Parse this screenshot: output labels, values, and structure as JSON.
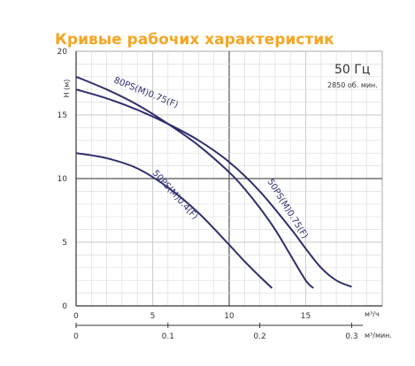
{
  "chart_data": {
    "type": "line",
    "title": "Кривые рабочих характеристик",
    "title_color": "#f5a623",
    "line_color": "#2f2f6e",
    "grid": true,
    "frequency_label": "50 Гц",
    "speed_label": "2850 об. мин.",
    "ylabel": "H (м)",
    "xlabel_primary": "м³/ч",
    "xlabel_secondary": "м³/мин.",
    "xlim": [
      0,
      20
    ],
    "ylim": [
      0,
      20
    ],
    "x_ticks": [
      "0",
      "5",
      "10",
      "15"
    ],
    "y_ticks": [
      "0",
      "5",
      "10",
      "15",
      "20"
    ],
    "x_secondary_ticks": [
      "0",
      "0.1",
      "0.2",
      "0.3"
    ],
    "series": [
      {
        "name": "80PS(M)0.75(F)",
        "x": [
          0,
          2,
          4,
          6,
          8,
          10,
          12,
          14,
          15,
          16,
          17,
          18
        ],
        "y": [
          17.0,
          16.3,
          15.4,
          14.3,
          13.0,
          11.3,
          9.0,
          6.1,
          4.5,
          3.0,
          2.0,
          1.5
        ]
      },
      {
        "name": "50PS(M)0.75(F)",
        "x": [
          0,
          2,
          4,
          6,
          8,
          10,
          11,
          12,
          13,
          14,
          15,
          15.5
        ],
        "y": [
          18.0,
          17.0,
          15.8,
          14.3,
          12.6,
          10.5,
          9.2,
          7.7,
          6.0,
          4.0,
          2.0,
          1.4
        ]
      },
      {
        "name": "50PS(M)0.4(F)",
        "x": [
          0,
          2,
          4,
          6,
          8,
          10,
          11,
          12,
          12.8
        ],
        "y": [
          12.0,
          11.6,
          10.8,
          9.3,
          7.3,
          4.8,
          3.5,
          2.3,
          1.4
        ]
      }
    ]
  }
}
